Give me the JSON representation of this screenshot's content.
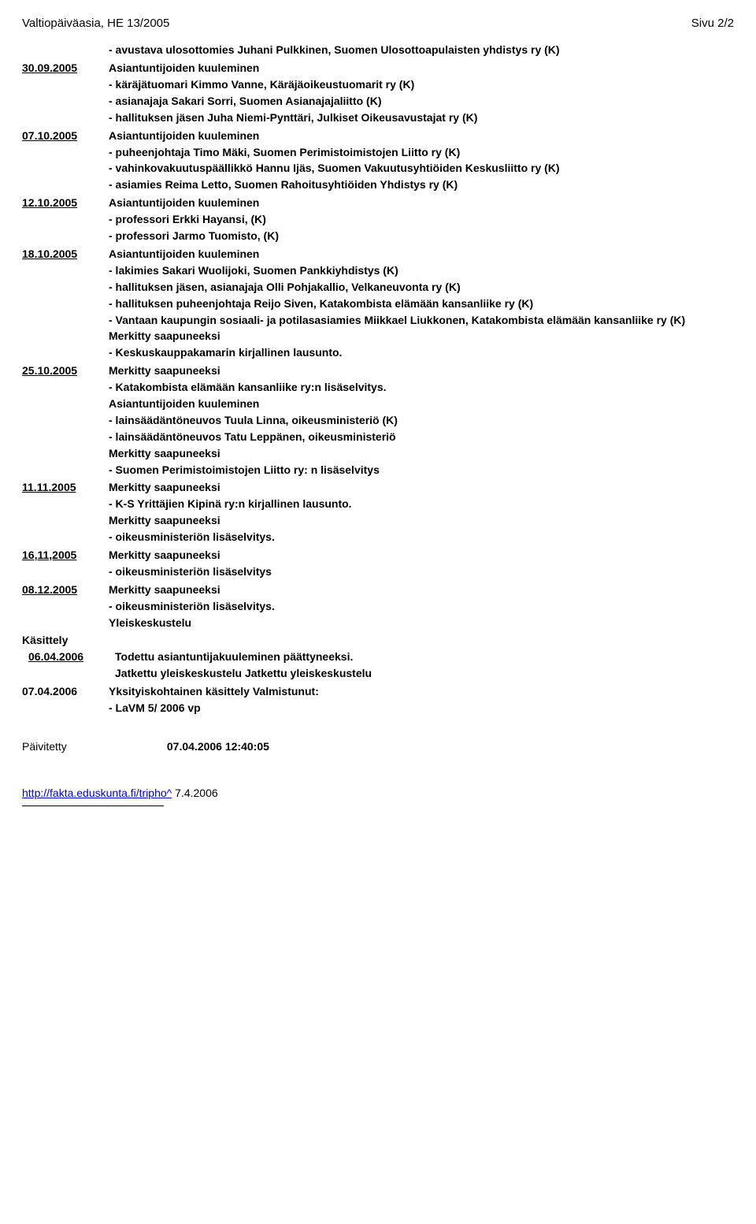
{
  "header": {
    "left": "Valtiopäiväasia, HE 13/2005",
    "right": "Sivu 2/2"
  },
  "entries": [
    {
      "date": "",
      "underline": false,
      "lines": [
        "- avustava ulosottomies Juhani Pulkkinen, Suomen Ulosottoapulaisten yhdistys ry (K)"
      ]
    },
    {
      "date": "30.09.2005",
      "underline": true,
      "lines": [
        "Asiantuntijoiden kuuleminen",
        "- käräjätuomari Kimmo Vanne, Käräjäoikeustuomarit ry (K)",
        "- asianajaja Sakari Sorri, Suomen Asianajajaliitto (K)",
        "- hallituksen jäsen Juha Niemi-Pynttäri, Julkiset Oikeusavustajat ry (K)"
      ]
    },
    {
      "date": "07.10.2005",
      "underline": true,
      "lines": [
        "Asiantuntijoiden kuuleminen",
        "- puheenjohtaja Timo Mäki, Suomen Perimistoimistojen Liitto ry (K)",
        "- vahinkovakuutuspäällikkö Hannu Ijäs, Suomen Vakuutusyhtiöiden Keskusliitto ry (K)",
        "- asiamies Reima Letto, Suomen Rahoitusyhtiöiden Yhdistys ry (K)"
      ]
    },
    {
      "date": "12.10.2005",
      "underline": true,
      "lines": [
        "Asiantuntijoiden kuuleminen",
        "- professori Erkki Hayansi, (K)",
        "- professori Jarmo Tuomisto, (K)"
      ]
    },
    {
      "date": "18.10.2005",
      "underline": true,
      "lines": [
        "Asiantuntijoiden kuuleminen",
        "- lakimies Sakari Wuolijoki, Suomen Pankkiyhdistys (K)",
        "- hallituksen jäsen, asianajaja Olli Pohjakallio, Velkaneuvonta ry (K)",
        "- hallituksen puheenjohtaja Reijo Siven, Katakombista elämään kansanliike ry (K)",
        "- Vantaan kaupungin sosiaali- ja potilasasiamies Miikkael Liukkonen, Katakombista elämään kansanliike ry (K)",
        "Merkitty saapuneeksi",
        "- Keskuskauppakamarin kirjallinen lausunto."
      ]
    },
    {
      "date": "25.10.2005",
      "underline": true,
      "lines": [
        "Merkitty saapuneeksi",
        "- Katakombista elämään kansanliike ry:n lisäselvitys.",
        "Asiantuntijoiden kuuleminen",
        "- lainsäädäntöneuvos Tuula Linna, oikeusministeriö (K)",
        "- lainsäädäntöneuvos Tatu Leppänen, oikeusministeriö",
        "Merkitty saapuneeksi",
        "- Suomen Perimistoimistojen Liitto ry: n lisäselvitys"
      ]
    },
    {
      "date": "11.11.2005",
      "underline": true,
      "lines": [
        "Merkitty saapuneeksi",
        "- K-S Yrittäjien Kipinä ry:n kirjallinen lausunto.",
        "Merkitty saapuneeksi",
        "- oikeusministeriön lisäselvitys."
      ]
    },
    {
      "date": "16,11,2005",
      "underline": true,
      "lines": [
        "Merkitty saapuneeksi",
        "- oikeusministeriön lisäselvitys"
      ]
    },
    {
      "date": "08.12.2005",
      "underline": true,
      "lines": [
        "Merkitty saapuneeksi",
        "- oikeusministeriön lisäselvitys.",
        "Yleiskeskustelu"
      ]
    },
    {
      "date": "Käsittely",
      "underline": false,
      "lines": []
    },
    {
      "date": "06.04.2006",
      "underline": true,
      "indent": true,
      "lines": [
        "Todettu asiantuntijakuuleminen päättyneeksi.",
        "Jatkettu yleiskeskustelu Jatkettu yleiskeskustelu"
      ]
    },
    {
      "date": "07.04.2006",
      "underline": false,
      "lines": [
        "Yksityiskohtainen käsittely Valmistunut:",
        "- LaVM 5/ 2006 vp"
      ]
    }
  ],
  "footer": {
    "label": "Päivitetty",
    "value": "07.04.2006 12:40:05"
  },
  "link": {
    "url": "http://fakta.eduskunta.fi/tripho^",
    "suffix": " 7.4.2006"
  }
}
